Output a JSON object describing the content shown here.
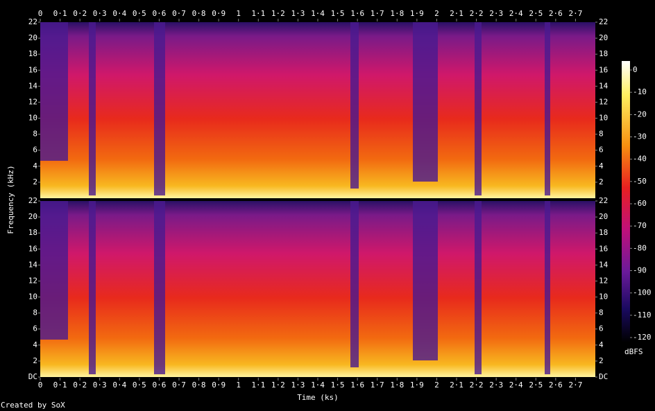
{
  "chart_data": {
    "type": "spectrogram",
    "x_label": "Time (ks)",
    "y_label": "Frequency (kHz)",
    "colorbar_label": "dBFS",
    "footer": "Created by SoX",
    "xlim": [
      0,
      2.8
    ],
    "xticks": [
      0,
      {
        "value": 0.1,
        "label": "0·1"
      },
      {
        "value": 0.2,
        "label": "0·2"
      },
      {
        "value": 0.3,
        "label": "0·3"
      },
      {
        "value": 0.4,
        "label": "0·4"
      },
      {
        "value": 0.5,
        "label": "0·5"
      },
      {
        "value": 0.6,
        "label": "0·6"
      },
      {
        "value": 0.7,
        "label": "0·7"
      },
      {
        "value": 0.8,
        "label": "0·8"
      },
      {
        "value": 0.9,
        "label": "0·9"
      },
      1,
      {
        "value": 1.1,
        "label": "1·1"
      },
      {
        "value": 1.2,
        "label": "1·2"
      },
      {
        "value": 1.3,
        "label": "1·3"
      },
      {
        "value": 1.4,
        "label": "1·4"
      },
      {
        "value": 1.5,
        "label": "1·5"
      },
      {
        "value": 1.6,
        "label": "1·6"
      },
      {
        "value": 1.7,
        "label": "1·7"
      },
      {
        "value": 1.8,
        "label": "1·8"
      },
      {
        "value": 1.9,
        "label": "1·9"
      },
      2,
      {
        "value": 2.1,
        "label": "2·1"
      },
      {
        "value": 2.2,
        "label": "2·2"
      },
      {
        "value": 2.3,
        "label": "2·3"
      },
      {
        "value": 2.4,
        "label": "2·4"
      },
      {
        "value": 2.5,
        "label": "2·5"
      },
      {
        "value": 2.6,
        "label": "2·6"
      },
      {
        "value": 2.7,
        "label": "2·7"
      }
    ],
    "ylim": [
      0,
      22
    ],
    "yticks": [
      {
        "value": 0,
        "label": "DC"
      },
      2,
      4,
      6,
      8,
      10,
      12,
      14,
      16,
      18,
      20,
      22
    ],
    "clim": [
      -120,
      0
    ],
    "cticks": [
      0,
      -10,
      -20,
      -30,
      -40,
      -50,
      -60,
      -70,
      -80,
      -90,
      -100,
      -110,
      -120
    ]
  }
}
